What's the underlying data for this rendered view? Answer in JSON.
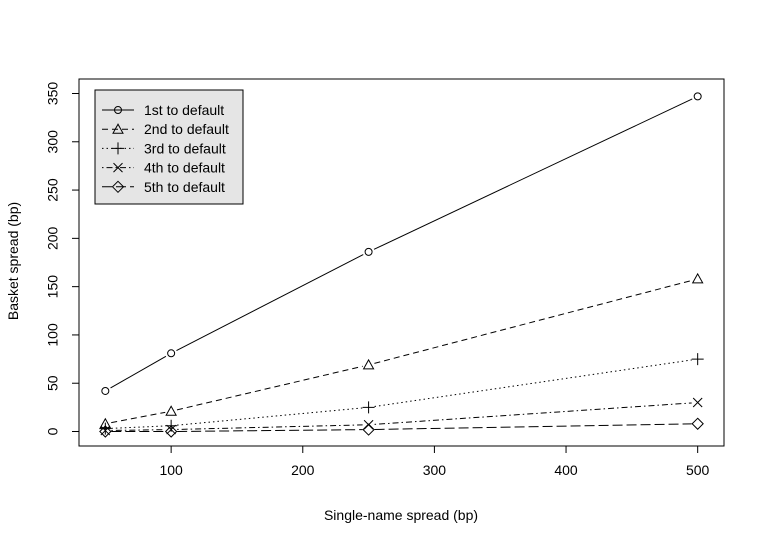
{
  "chart_data": {
    "type": "line",
    "title": "",
    "xlabel": "Single-name spread (bp)",
    "ylabel": "Basket spread (bp)",
    "xlim": [
      30,
      520
    ],
    "ylim": [
      -15,
      365
    ],
    "x_ticks": [
      100,
      200,
      300,
      400,
      500
    ],
    "y_ticks": [
      0,
      50,
      100,
      150,
      200,
      250,
      300,
      350
    ],
    "x": [
      50,
      100,
      250,
      500
    ],
    "grid": false,
    "legend_position": "top-left",
    "legend_background": "#e5e5e5",
    "series": [
      {
        "name": "1st to default",
        "marker": "circle",
        "dash": "solid",
        "values": [
          42,
          81,
          186,
          347
        ]
      },
      {
        "name": "2nd to default",
        "marker": "triangle",
        "dash": "dashed",
        "values": [
          8,
          21,
          69,
          158
        ]
      },
      {
        "name": "3rd to default",
        "marker": "plus",
        "dash": "dotted",
        "values": [
          3,
          6,
          25,
          75
        ]
      },
      {
        "name": "4th to default",
        "marker": "cross",
        "dash": "dotdash",
        "values": [
          1,
          2,
          7,
          30
        ]
      },
      {
        "name": "5th to default",
        "marker": "diamond",
        "dash": "longdash",
        "values": [
          0,
          0,
          2,
          8
        ]
      }
    ]
  }
}
